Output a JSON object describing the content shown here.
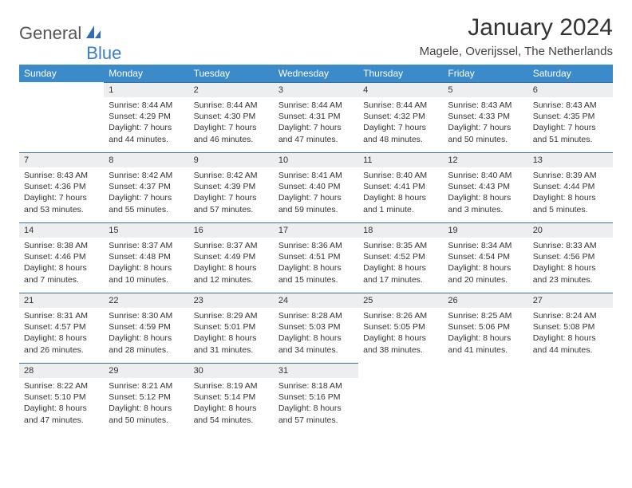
{
  "logo": {
    "text1": "General",
    "text2": "Blue"
  },
  "title": "January 2024",
  "location": "Magele, Overijssel, The Netherlands",
  "colors": {
    "header_bg": "#3b8aca",
    "header_text": "#ffffff",
    "daynum_bg": "#eceef0",
    "daynum_border": "#3b6fa3",
    "text": "#333333",
    "logo_gray": "#555555",
    "logo_blue": "#3b7fc4",
    "page_bg": "#ffffff"
  },
  "days_of_week": [
    "Sunday",
    "Monday",
    "Tuesday",
    "Wednesday",
    "Thursday",
    "Friday",
    "Saturday"
  ],
  "weeks": [
    [
      {
        "blank": true
      },
      {
        "n": "1",
        "sr": "8:44 AM",
        "ss": "4:29 PM",
        "dl": "7 hours and 44 minutes."
      },
      {
        "n": "2",
        "sr": "8:44 AM",
        "ss": "4:30 PM",
        "dl": "7 hours and 46 minutes."
      },
      {
        "n": "3",
        "sr": "8:44 AM",
        "ss": "4:31 PM",
        "dl": "7 hours and 47 minutes."
      },
      {
        "n": "4",
        "sr": "8:44 AM",
        "ss": "4:32 PM",
        "dl": "7 hours and 48 minutes."
      },
      {
        "n": "5",
        "sr": "8:43 AM",
        "ss": "4:33 PM",
        "dl": "7 hours and 50 minutes."
      },
      {
        "n": "6",
        "sr": "8:43 AM",
        "ss": "4:35 PM",
        "dl": "7 hours and 51 minutes."
      }
    ],
    [
      {
        "n": "7",
        "sr": "8:43 AM",
        "ss": "4:36 PM",
        "dl": "7 hours and 53 minutes."
      },
      {
        "n": "8",
        "sr": "8:42 AM",
        "ss": "4:37 PM",
        "dl": "7 hours and 55 minutes."
      },
      {
        "n": "9",
        "sr": "8:42 AM",
        "ss": "4:39 PM",
        "dl": "7 hours and 57 minutes."
      },
      {
        "n": "10",
        "sr": "8:41 AM",
        "ss": "4:40 PM",
        "dl": "7 hours and 59 minutes."
      },
      {
        "n": "11",
        "sr": "8:40 AM",
        "ss": "4:41 PM",
        "dl": "8 hours and 1 minute."
      },
      {
        "n": "12",
        "sr": "8:40 AM",
        "ss": "4:43 PM",
        "dl": "8 hours and 3 minutes."
      },
      {
        "n": "13",
        "sr": "8:39 AM",
        "ss": "4:44 PM",
        "dl": "8 hours and 5 minutes."
      }
    ],
    [
      {
        "n": "14",
        "sr": "8:38 AM",
        "ss": "4:46 PM",
        "dl": "8 hours and 7 minutes."
      },
      {
        "n": "15",
        "sr": "8:37 AM",
        "ss": "4:48 PM",
        "dl": "8 hours and 10 minutes."
      },
      {
        "n": "16",
        "sr": "8:37 AM",
        "ss": "4:49 PM",
        "dl": "8 hours and 12 minutes."
      },
      {
        "n": "17",
        "sr": "8:36 AM",
        "ss": "4:51 PM",
        "dl": "8 hours and 15 minutes."
      },
      {
        "n": "18",
        "sr": "8:35 AM",
        "ss": "4:52 PM",
        "dl": "8 hours and 17 minutes."
      },
      {
        "n": "19",
        "sr": "8:34 AM",
        "ss": "4:54 PM",
        "dl": "8 hours and 20 minutes."
      },
      {
        "n": "20",
        "sr": "8:33 AM",
        "ss": "4:56 PM",
        "dl": "8 hours and 23 minutes."
      }
    ],
    [
      {
        "n": "21",
        "sr": "8:31 AM",
        "ss": "4:57 PM",
        "dl": "8 hours and 26 minutes."
      },
      {
        "n": "22",
        "sr": "8:30 AM",
        "ss": "4:59 PM",
        "dl": "8 hours and 28 minutes."
      },
      {
        "n": "23",
        "sr": "8:29 AM",
        "ss": "5:01 PM",
        "dl": "8 hours and 31 minutes."
      },
      {
        "n": "24",
        "sr": "8:28 AM",
        "ss": "5:03 PM",
        "dl": "8 hours and 34 minutes."
      },
      {
        "n": "25",
        "sr": "8:26 AM",
        "ss": "5:05 PM",
        "dl": "8 hours and 38 minutes."
      },
      {
        "n": "26",
        "sr": "8:25 AM",
        "ss": "5:06 PM",
        "dl": "8 hours and 41 minutes."
      },
      {
        "n": "27",
        "sr": "8:24 AM",
        "ss": "5:08 PM",
        "dl": "8 hours and 44 minutes."
      }
    ],
    [
      {
        "n": "28",
        "sr": "8:22 AM",
        "ss": "5:10 PM",
        "dl": "8 hours and 47 minutes."
      },
      {
        "n": "29",
        "sr": "8:21 AM",
        "ss": "5:12 PM",
        "dl": "8 hours and 50 minutes."
      },
      {
        "n": "30",
        "sr": "8:19 AM",
        "ss": "5:14 PM",
        "dl": "8 hours and 54 minutes."
      },
      {
        "n": "31",
        "sr": "8:18 AM",
        "ss": "5:16 PM",
        "dl": "8 hours and 57 minutes."
      },
      {
        "blank": true
      },
      {
        "blank": true
      },
      {
        "blank": true
      }
    ]
  ],
  "labels": {
    "sunrise": "Sunrise: ",
    "sunset": "Sunset: ",
    "daylight": "Daylight: "
  }
}
